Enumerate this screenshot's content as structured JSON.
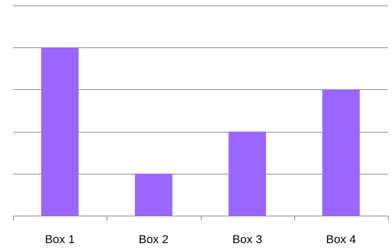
{
  "chart_data": {
    "type": "bar",
    "categories": [
      "Box 1",
      "Box 2",
      "Box 3",
      "Box 4"
    ],
    "values": [
      4,
      1,
      2,
      3
    ],
    "ylim": [
      0,
      5
    ],
    "grid": true,
    "title": "",
    "xlabel": "",
    "ylabel": "",
    "bar_color": "#9966ff",
    "grid_color": "#868686",
    "axis_color": "#868686"
  }
}
